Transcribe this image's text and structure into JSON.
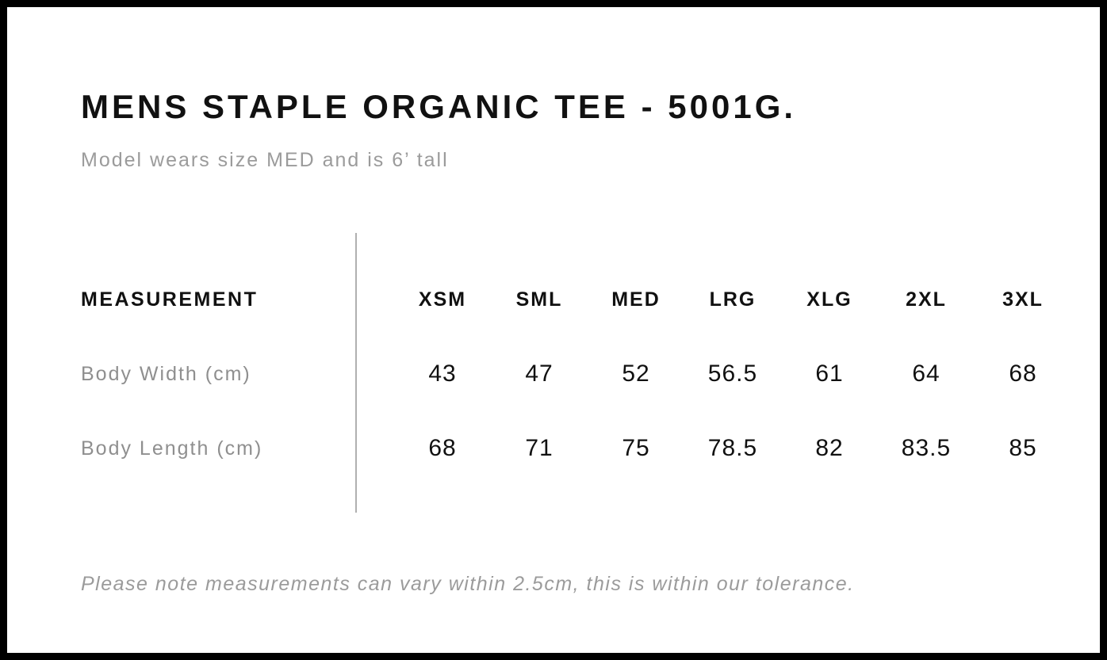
{
  "page": {
    "title": "MENS STAPLE ORGANIC TEE - 5001G.",
    "subtitle": "Model wears size MED and is 6’ tall",
    "footnote": "Please note measurements can vary within 2.5cm, this is within our tolerance."
  },
  "size_table": {
    "measurement_header": "MEASUREMENT",
    "size_headers": [
      "XSM",
      "SML",
      "MED",
      "LRG",
      "XLG",
      "2XL",
      "3XL"
    ],
    "rows": [
      {
        "label": "Body Width (cm)",
        "values": [
          "43",
          "47",
          "52",
          "56.5",
          "61",
          "64",
          "68"
        ]
      },
      {
        "label": "Body Length (cm)",
        "values": [
          "68",
          "71",
          "75",
          "78.5",
          "82",
          "83.5",
          "85"
        ]
      }
    ]
  },
  "colors": {
    "page_border": "#000000",
    "heading_text": "#111111",
    "muted_text": "#9b9b9b",
    "row_label_text": "#8f8f8f",
    "divider": "#b0b0b0",
    "background": "#ffffff"
  }
}
